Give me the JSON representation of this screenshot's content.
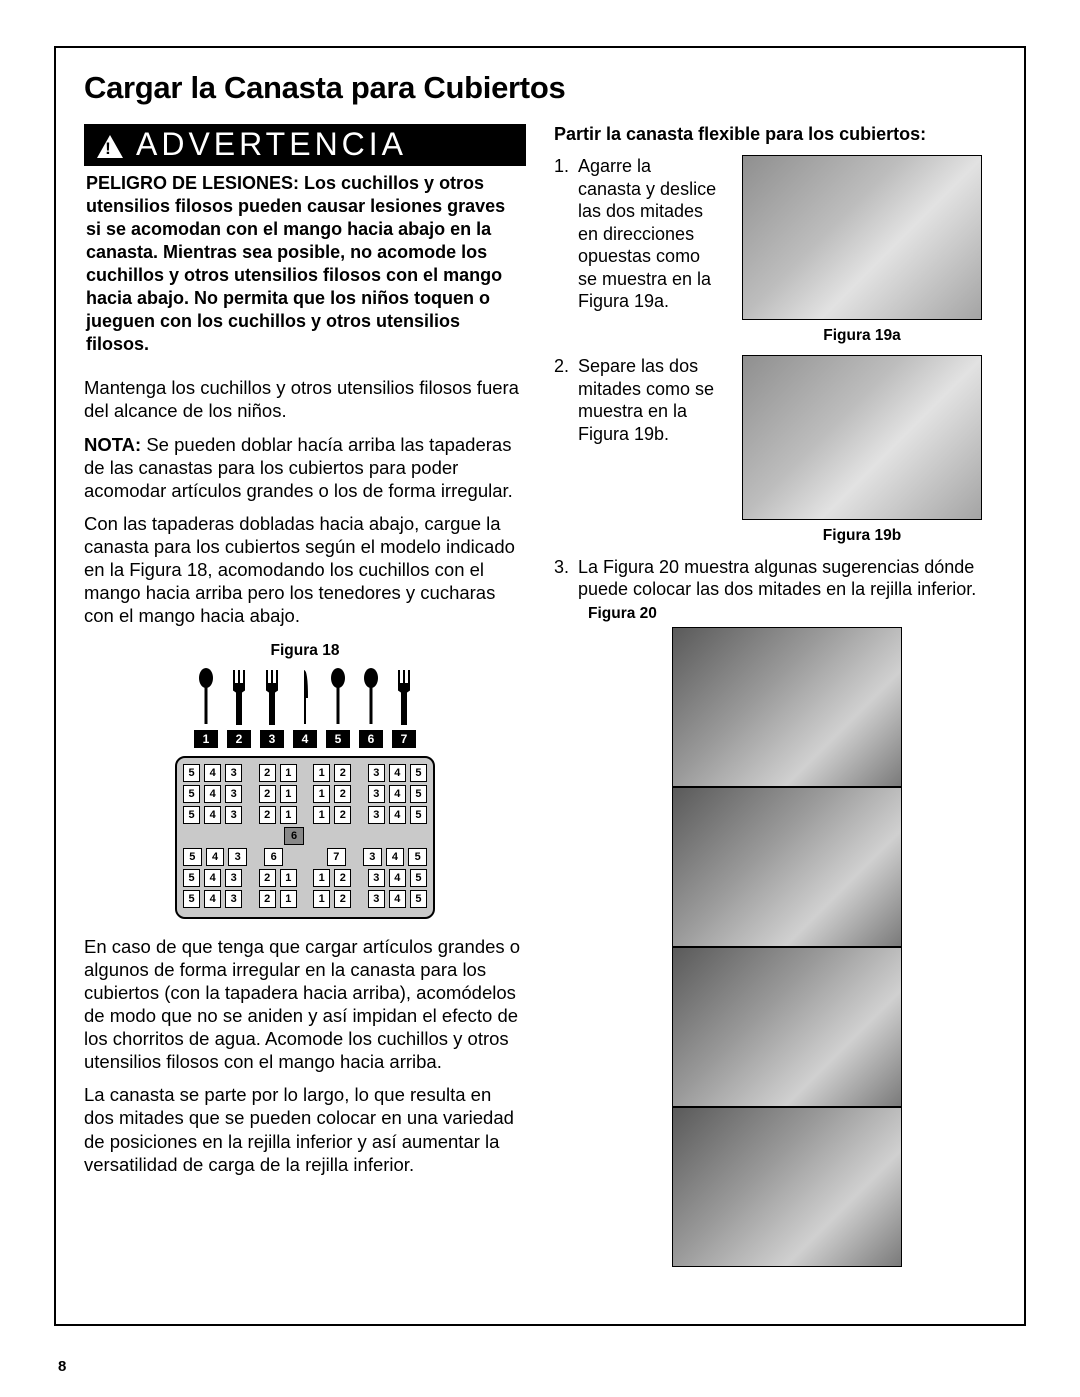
{
  "page_number": "8",
  "title": "Cargar la Canasta para Cubiertos",
  "warning": {
    "label": "ADVERTENCIA",
    "body": "PELIGRO DE LESIONES: Los cuchillos y otros utensilios filosos pueden causar lesiones graves si se acomodan con el mango hacia abajo en la canasta.  Mientras sea posible, no acomode los cuchillos y otros utensilios filosos con el mango hacia abajo.  No permita que los niños toquen o jueguen con los cuchillos y otros utensilios filosos."
  },
  "left": {
    "p1": "Mantenga los cuchillos y otros utensilios filosos fuera del alcance de los niños.",
    "p2_bold": "NOTA:",
    "p2_rest": " Se pueden doblar hacía arriba las tapaderas de las canastas para los cubiertos para poder acomodar artículos grandes o los de forma irregular.",
    "p3": "Con las tapaderas dobladas hacia abajo, cargue la canasta para los cubiertos según el modelo indicado en la Figura 18, acomodando los cuchillos con el mango hacia arriba pero los tenedores y cucharas con el mango hacia abajo.",
    "fig18_label": "Figura 18",
    "p4": "En caso de que tenga que cargar artículos grandes o algunos de forma irregular en la canasta para los cubiertos (con la tapadera hacia arriba), acomódelos de modo que no se aniden y así impidan el efecto de los chorritos de agua. Acomode los cuchillos y otros utensilios filosos con el mango hacia arriba.",
    "p5": "La canasta se parte por lo largo, lo que resulta en dos mitades que se pueden colocar en una variedad de posiciones en la rejilla inferior y así aumentar la versatilidad de carga de la rejilla inferior.",
    "utensil_numbers": [
      "1",
      "2",
      "3",
      "4",
      "5",
      "6",
      "7"
    ],
    "grid_rows_top": [
      [
        "5",
        "4",
        "3",
        "",
        "2",
        "1",
        "",
        "1",
        "2",
        "",
        "3",
        "4",
        "5"
      ],
      [
        "5",
        "4",
        "3",
        "",
        "2",
        "1",
        "",
        "1",
        "2",
        "",
        "3",
        "4",
        "5"
      ],
      [
        "5",
        "4",
        "3",
        "",
        "2",
        "1",
        "",
        "1",
        "2",
        "",
        "3",
        "4",
        "5"
      ]
    ],
    "grid_rows_bottom": [
      [
        "5",
        "4",
        "3",
        "",
        "6",
        "",
        "",
        "",
        "7",
        "",
        "3",
        "4",
        "5"
      ],
      [
        "5",
        "4",
        "3",
        "",
        "2",
        "1",
        "",
        "1",
        "2",
        "",
        "3",
        "4",
        "5"
      ],
      [
        "5",
        "4",
        "3",
        "",
        "2",
        "1",
        "",
        "1",
        "2",
        "",
        "3",
        "4",
        "5"
      ]
    ],
    "mid_singletons": [
      "6"
    ]
  },
  "right": {
    "heading": "Partir la canasta flexible para los cubiertos:",
    "step1": "Agarre la canasta y deslice las dos mitades en direcciones opuestas como se muestra en la Figura 19a.",
    "fig19a_label": "Figura 19a",
    "step2": "Separe las dos mitades como se muestra en la Figura 19b.",
    "fig19b_label": "Figura 19b",
    "step3": "La Figura 20 muestra algunas sugerencias dónde puede colocar las dos mitades en la rejilla inferior.",
    "fig20_label": "Figura 20"
  },
  "colors": {
    "text": "#000000",
    "bg": "#ffffff",
    "warning_bg": "#000000",
    "warning_fg": "#ffffff",
    "grid_bg": "#c9c9c9"
  }
}
